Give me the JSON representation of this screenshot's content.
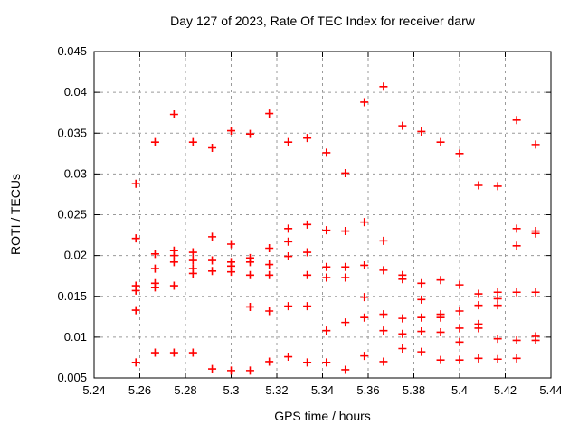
{
  "window": {
    "background": "#ffffff"
  },
  "chart_data": {
    "type": "scatter",
    "title": "Day 127 of 2023, Rate Of TEC Index for receiver darw",
    "xlabel": "GPS time / hours",
    "ylabel": "ROTI / TECUs",
    "xlim": [
      5.24,
      5.44
    ],
    "ylim": [
      0.005,
      0.045
    ],
    "x_ticks": [
      5.24,
      5.26,
      5.28,
      5.3,
      5.32,
      5.34,
      5.36,
      5.38,
      5.4,
      5.42,
      5.44
    ],
    "x_tick_labels": [
      "5.24",
      "5.26",
      "5.28",
      "5.3",
      "5.32",
      "5.34",
      "5.36",
      "5.38",
      "5.4",
      "5.42",
      "5.44"
    ],
    "y_ticks": [
      0.005,
      0.01,
      0.015,
      0.02,
      0.025,
      0.03,
      0.035,
      0.04,
      0.045
    ],
    "y_tick_labels": [
      "0.005",
      "0.01",
      "0.015",
      "0.02",
      "0.025",
      "0.03",
      "0.035",
      "0.04",
      "0.045"
    ],
    "grid": true,
    "legend_position": "none",
    "marker": "plus",
    "marker_color": "#ff0000",
    "grid_color": "#9a9a9a",
    "axis_color": "#000000",
    "series": [
      {
        "name": "ROTI",
        "points": [
          [
            5.2583,
            0.0288
          ],
          [
            5.2583,
            0.0221
          ],
          [
            5.2583,
            0.0163
          ],
          [
            5.2583,
            0.0157
          ],
          [
            5.2583,
            0.0133
          ],
          [
            5.2583,
            0.0069
          ],
          [
            5.2667,
            0.0339
          ],
          [
            5.2667,
            0.0202
          ],
          [
            5.2667,
            0.0184
          ],
          [
            5.2667,
            0.0166
          ],
          [
            5.2667,
            0.0161
          ],
          [
            5.2667,
            0.0081
          ],
          [
            5.275,
            0.0373
          ],
          [
            5.275,
            0.0206
          ],
          [
            5.275,
            0.02
          ],
          [
            5.275,
            0.0192
          ],
          [
            5.275,
            0.0163
          ],
          [
            5.275,
            0.0081
          ],
          [
            5.2833,
            0.0339
          ],
          [
            5.2833,
            0.0204
          ],
          [
            5.2833,
            0.0194
          ],
          [
            5.2833,
            0.0184
          ],
          [
            5.2833,
            0.0178
          ],
          [
            5.2833,
            0.0081
          ],
          [
            5.2917,
            0.0332
          ],
          [
            5.2917,
            0.0223
          ],
          [
            5.2917,
            0.0194
          ],
          [
            5.2917,
            0.0181
          ],
          [
            5.2917,
            0.0061
          ],
          [
            5.3,
            0.0353
          ],
          [
            5.3,
            0.0214
          ],
          [
            5.3,
            0.0192
          ],
          [
            5.3,
            0.0187
          ],
          [
            5.3,
            0.018
          ],
          [
            5.3,
            0.0059
          ],
          [
            5.3083,
            0.0349
          ],
          [
            5.3083,
            0.0197
          ],
          [
            5.3083,
            0.0192
          ],
          [
            5.3083,
            0.0176
          ],
          [
            5.3083,
            0.0137
          ],
          [
            5.3083,
            0.0059
          ],
          [
            5.3167,
            0.0374
          ],
          [
            5.3167,
            0.0209
          ],
          [
            5.3167,
            0.0189
          ],
          [
            5.3167,
            0.0176
          ],
          [
            5.3167,
            0.0132
          ],
          [
            5.3167,
            0.007
          ],
          [
            5.325,
            0.0339
          ],
          [
            5.325,
            0.0233
          ],
          [
            5.325,
            0.0217
          ],
          [
            5.325,
            0.0199
          ],
          [
            5.325,
            0.0138
          ],
          [
            5.325,
            0.0076
          ],
          [
            5.3333,
            0.0344
          ],
          [
            5.3333,
            0.0238
          ],
          [
            5.3333,
            0.0204
          ],
          [
            5.3333,
            0.0176
          ],
          [
            5.3333,
            0.0138
          ],
          [
            5.3333,
            0.0069
          ],
          [
            5.3417,
            0.0326
          ],
          [
            5.3417,
            0.0231
          ],
          [
            5.3417,
            0.0186
          ],
          [
            5.3417,
            0.0173
          ],
          [
            5.3417,
            0.0108
          ],
          [
            5.3417,
            0.0069
          ],
          [
            5.35,
            0.0301
          ],
          [
            5.35,
            0.023
          ],
          [
            5.35,
            0.0186
          ],
          [
            5.35,
            0.0173
          ],
          [
            5.35,
            0.0118
          ],
          [
            5.35,
            0.006
          ],
          [
            5.3583,
            0.0388
          ],
          [
            5.3583,
            0.0241
          ],
          [
            5.3583,
            0.0188
          ],
          [
            5.3583,
            0.0149
          ],
          [
            5.3583,
            0.0124
          ],
          [
            5.3583,
            0.0077
          ],
          [
            5.3667,
            0.0407
          ],
          [
            5.3667,
            0.0218
          ],
          [
            5.3667,
            0.0182
          ],
          [
            5.3667,
            0.0128
          ],
          [
            5.3667,
            0.0108
          ],
          [
            5.3667,
            0.007
          ],
          [
            5.375,
            0.0359
          ],
          [
            5.375,
            0.0176
          ],
          [
            5.375,
            0.0171
          ],
          [
            5.375,
            0.0123
          ],
          [
            5.375,
            0.0104
          ],
          [
            5.375,
            0.0086
          ],
          [
            5.3833,
            0.0352
          ],
          [
            5.3833,
            0.0166
          ],
          [
            5.3833,
            0.0146
          ],
          [
            5.3833,
            0.0124
          ],
          [
            5.3833,
            0.0107
          ],
          [
            5.3833,
            0.0082
          ],
          [
            5.3917,
            0.0339
          ],
          [
            5.3917,
            0.017
          ],
          [
            5.3917,
            0.0128
          ],
          [
            5.3917,
            0.0124
          ],
          [
            5.3917,
            0.0106
          ],
          [
            5.3917,
            0.0072
          ],
          [
            5.4,
            0.0325
          ],
          [
            5.4,
            0.0164
          ],
          [
            5.4,
            0.0132
          ],
          [
            5.4,
            0.0111
          ],
          [
            5.4,
            0.0094
          ],
          [
            5.4,
            0.0072
          ],
          [
            5.4083,
            0.0286
          ],
          [
            5.4083,
            0.0153
          ],
          [
            5.4083,
            0.0139
          ],
          [
            5.4083,
            0.0116
          ],
          [
            5.4083,
            0.0111
          ],
          [
            5.4083,
            0.0074
          ],
          [
            5.4167,
            0.0285
          ],
          [
            5.4167,
            0.0155
          ],
          [
            5.4167,
            0.0147
          ],
          [
            5.4167,
            0.0139
          ],
          [
            5.4167,
            0.0098
          ],
          [
            5.4167,
            0.0073
          ],
          [
            5.425,
            0.0366
          ],
          [
            5.425,
            0.0233
          ],
          [
            5.425,
            0.0212
          ],
          [
            5.425,
            0.0155
          ],
          [
            5.425,
            0.0096
          ],
          [
            5.425,
            0.0074
          ],
          [
            5.4333,
            0.0336
          ],
          [
            5.4333,
            0.023
          ],
          [
            5.4333,
            0.0227
          ],
          [
            5.4333,
            0.0155
          ],
          [
            5.4333,
            0.0101
          ],
          [
            5.4333,
            0.0096
          ]
        ]
      }
    ]
  }
}
